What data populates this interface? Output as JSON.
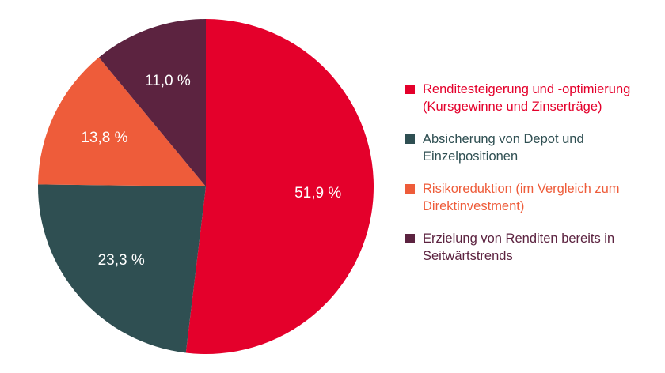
{
  "chart_data": {
    "type": "pie",
    "title": "",
    "slices": [
      {
        "label": "Renditesteigerung und -optimierung (Kursgewinne und Zinserträge)",
        "value": 51.9,
        "value_label": "51,9 %",
        "color": "#e4002b"
      },
      {
        "label": "Absicherung von Depot und Einzelpositionen",
        "value": 23.3,
        "value_label": "23,3 %",
        "color": "#2f4f52"
      },
      {
        "label": "Risikoreduktion (im Vergleich zum Direktinvestment)",
        "value": 13.8,
        "value_label": "13,8 %",
        "color": "#ee5c3a"
      },
      {
        "label": "Erzielung von Renditen bereits in Seitwärtstrends",
        "value": 11.0,
        "value_label": "11,0 %",
        "color": "#5c2340"
      }
    ],
    "legend_position": "right"
  }
}
